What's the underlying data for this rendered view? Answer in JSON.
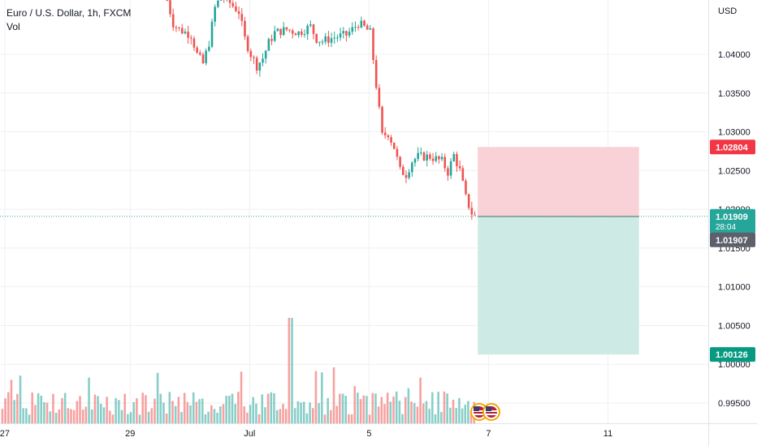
{
  "legend": {
    "symbol_title": "Euro / U.S. Dollar, 1h, FXCM",
    "volume_label": "Vol"
  },
  "currency_label": "USD",
  "colors": {
    "up": "#26a69a",
    "down": "#ef5350",
    "stop_zone": "#f8d2d6",
    "target_zone": "#cdebe4",
    "last_price_line": "#26a69a",
    "grid": "#eef0f3"
  },
  "chart_data": {
    "type": "candlestick",
    "title": "Euro / U.S. Dollar, 1h, FXCM",
    "y_unit": "USD",
    "ylim": [
      0.993,
      1.0485
    ],
    "y_ticks": [
      "1.04000",
      "1.03500",
      "1.03000",
      "1.02500",
      "1.02000",
      "1.01500",
      "1.01000",
      "1.00500",
      "1.00000",
      "0.99500"
    ],
    "x_ticks": [
      "27",
      "29",
      "Jul",
      "5",
      "7",
      "11"
    ],
    "grid": true,
    "series": [
      {
        "name": "Price",
        "close_path_approx": [
          [
            14.0,
            1.047
          ],
          [
            14.5,
            1.044
          ],
          [
            15.0,
            1.0432
          ],
          [
            16.0,
            1.0425
          ],
          [
            16.5,
            1.04
          ],
          [
            17.0,
            1.0388
          ],
          [
            17.5,
            1.0415
          ],
          [
            18.0,
            1.046
          ],
          [
            18.5,
            1.0475
          ],
          [
            19.0,
            1.047
          ],
          [
            20.0,
            1.0455
          ],
          [
            20.5,
            1.042
          ],
          [
            21.0,
            1.04
          ],
          [
            21.5,
            1.0385
          ],
          [
            22.0,
            1.0395
          ],
          [
            22.5,
            1.0415
          ],
          [
            23.0,
            1.0428
          ],
          [
            24.0,
            1.0432
          ],
          [
            25.0,
            1.0428
          ],
          [
            26.0,
            1.0436
          ],
          [
            26.5,
            1.042
          ],
          [
            27.0,
            1.0417
          ],
          [
            28.0,
            1.0422
          ],
          [
            29.0,
            1.0425
          ],
          [
            29.5,
            1.0432
          ],
          [
            30.0,
            1.044
          ],
          [
            30.5,
            1.0435
          ],
          [
            31.0,
            1.0428
          ],
          [
            31.5,
            1.036
          ],
          [
            32.0,
            1.0295
          ],
          [
            32.5,
            1.0298
          ],
          [
            33.0,
            1.028
          ],
          [
            33.5,
            1.025
          ],
          [
            34.0,
            1.0245
          ],
          [
            34.5,
            1.0262
          ],
          [
            35.0,
            1.0268
          ],
          [
            36.0,
            1.0268
          ],
          [
            37.0,
            1.0262
          ],
          [
            37.5,
            1.0248
          ],
          [
            38.0,
            1.027
          ],
          [
            38.5,
            1.025
          ],
          [
            39.0,
            1.0215
          ],
          [
            39.5,
            1.0195
          ],
          [
            39.8,
            1.0191
          ]
        ]
      },
      {
        "name": "Vol"
      }
    ],
    "price_labels": [
      {
        "id": "stop",
        "value": "1.02804",
        "color": "#f23645"
      },
      {
        "id": "current",
        "value": "1.01909",
        "sub": "28:04",
        "color": "#26a69a"
      },
      {
        "id": "entry",
        "value": "1.01907",
        "color": "#5d606b"
      },
      {
        "id": "target",
        "value": "1.00126",
        "color": "#089981"
      }
    ],
    "position_tool": {
      "entry": 1.01907,
      "stop": 1.02804,
      "target": 1.00126,
      "x_start": 40.0,
      "x_end": 53.5
    },
    "x_domain": [
      0,
      59.3
    ],
    "x_tick_positions": [
      0.4,
      10.9,
      20.9,
      30.9,
      40.9,
      50.9
    ]
  }
}
